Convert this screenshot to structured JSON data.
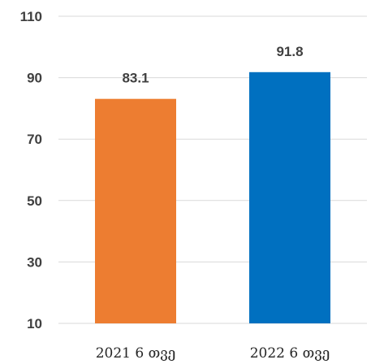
{
  "chart_data": {
    "type": "bar",
    "categories": [
      "2021 6 თვე",
      "2022 6 თვე"
    ],
    "values": [
      83.1,
      91.8
    ],
    "data_labels": [
      "83.1",
      "91.8"
    ],
    "colors": [
      "#ED7D31",
      "#0070C0"
    ],
    "ylim": [
      10,
      110
    ],
    "yticks": [
      10,
      30,
      50,
      70,
      90,
      110
    ],
    "grid": true,
    "gridline_color": "#D9D9D9",
    "title": "",
    "xlabel": "",
    "ylabel": ""
  }
}
